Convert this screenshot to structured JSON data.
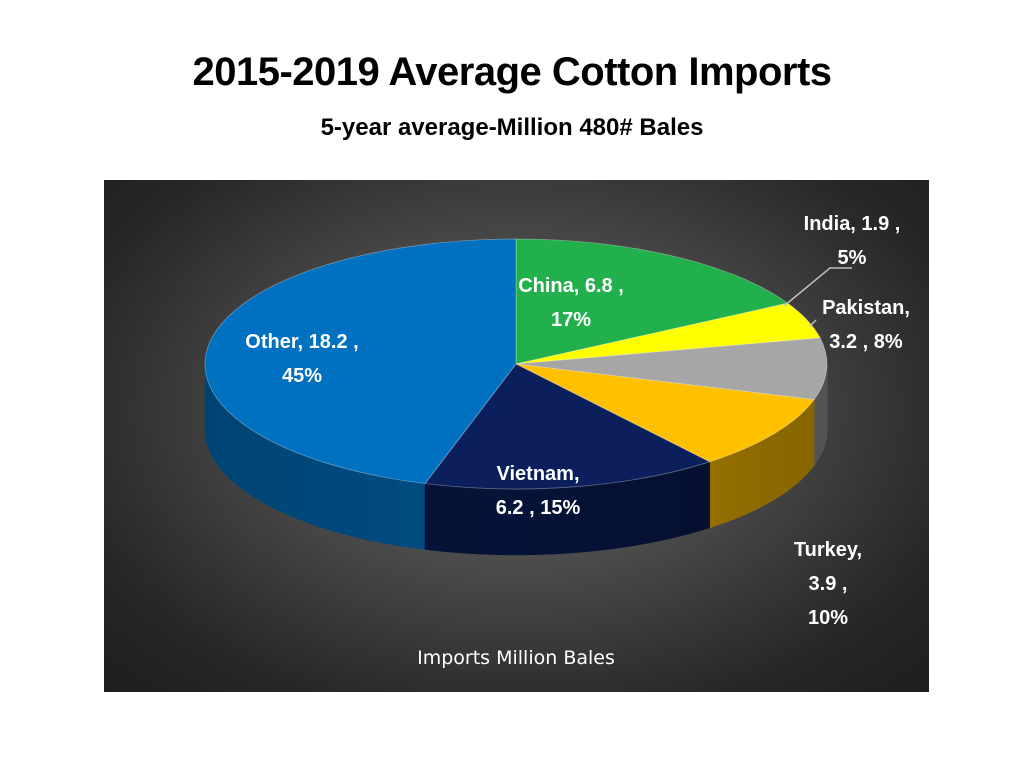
{
  "slide": {
    "title": "2015-2019 Average Cotton Imports",
    "subtitle": "5-year average-Million 480# Bales"
  },
  "chart_data": {
    "type": "pie",
    "title": "Imports Million Bales",
    "style": "3d",
    "slices": [
      {
        "name": "China",
        "value": 6.8,
        "percent": "17%",
        "color": "#22b04c",
        "side_color": "#17802f",
        "label_lines": [
          "China,  6.8 ,",
          "17%"
        ],
        "label_color": "#ffffff"
      },
      {
        "name": "India",
        "value": 1.9,
        "percent": "5%",
        "color": "#ffff00",
        "side_color": "#b8b800",
        "label_lines": [
          "India,  1.9 ,",
          "5%"
        ],
        "label_color": "#ffffff"
      },
      {
        "name": "Pakistan",
        "value": 3.2,
        "percent": "8%",
        "color": "#a6a6a6",
        "side_color": "#6e6e6e",
        "label_lines": [
          "Pakistan,",
          "3.2 , 8%"
        ],
        "label_color": "#ffffff"
      },
      {
        "name": "Turkey",
        "value": 3.9,
        "percent": "10%",
        "color": "#ffc000",
        "side_color": "#b08400",
        "label_lines": [
          "Turkey,",
          "3.9 ,",
          "10%"
        ],
        "label_color": "#ffffff"
      },
      {
        "name": "Vietnam",
        "value": 6.2,
        "percent": "15%",
        "color": "#0a1f5c",
        "side_color": "#061338",
        "label_lines": [
          "Vietnam,",
          "6.2 , 15%"
        ],
        "label_color": "#ffffff"
      },
      {
        "name": "Other",
        "value": 18.2,
        "percent": "45%",
        "color": "#0070c0",
        "side_color": "#004f87",
        "label_lines": [
          "Other,  18.2 ,",
          "45%"
        ],
        "label_color": "#ffffff"
      }
    ]
  }
}
